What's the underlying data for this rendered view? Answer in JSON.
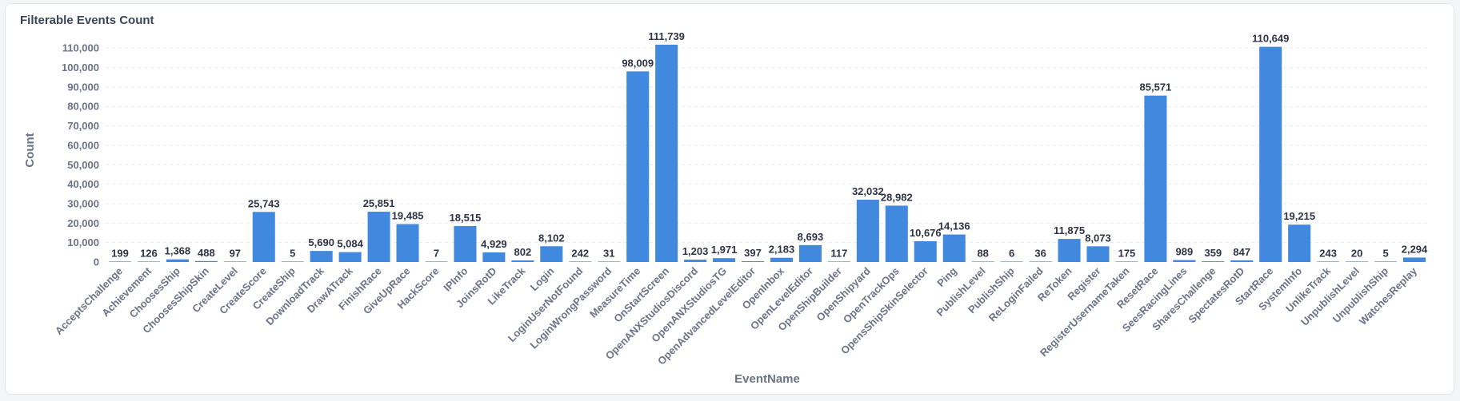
{
  "card": {
    "title": "Filterable Events Count"
  },
  "chart_data": {
    "type": "bar",
    "title": "Filterable Events Count",
    "xlabel": "EventName",
    "ylabel": "Count",
    "ylim": [
      0,
      115000
    ],
    "yticks": [
      0,
      10000,
      20000,
      30000,
      40000,
      50000,
      60000,
      70000,
      80000,
      90000,
      100000,
      110000
    ],
    "ytick_labels": [
      "0",
      "10,000",
      "20,000",
      "30,000",
      "40,000",
      "50,000",
      "60,000",
      "70,000",
      "80,000",
      "90,000",
      "100,000",
      "110,000"
    ],
    "grid": true,
    "bar_color": "#4089de",
    "categories": [
      "AcceptsChallenge",
      "Achievement",
      "ChoosesShip",
      "ChoosesShipSkin",
      "CreateLevel",
      "CreateScore",
      "CreateShip",
      "DownloadTrack",
      "DrawATrack",
      "FinishRace",
      "GiveUpRace",
      "HackScore",
      "IPInfo",
      "JoinsRotD",
      "LikeTrack",
      "Login",
      "LoginUserNotFound",
      "LoginWrongPassword",
      "MeasureTime",
      "OnStartScreen",
      "OpenANXStudiosDiscord",
      "OpenANXStudiosTG",
      "OpenAdvancedLevelEditor",
      "OpenInbox",
      "OpenLevelEditor",
      "OpenShipBuilder",
      "OpenShipyard",
      "OpenTrackOps",
      "OpensShipSkinSelector",
      "Ping",
      "PublishLevel",
      "PublishShip",
      "ReLoginFailed",
      "ReToken",
      "Register",
      "RegisterUsernameTaken",
      "ResetRace",
      "SeesRacingLines",
      "SharesChallenge",
      "SpectatesRotD",
      "StartRace",
      "SystemInfo",
      "UnlikeTrack",
      "UnpublishLevel",
      "UnpublishShip",
      "WatchesReplay"
    ],
    "values": [
      199,
      126,
      1368,
      488,
      97,
      25743,
      5,
      5690,
      5084,
      25851,
      19485,
      7,
      18515,
      4929,
      802,
      8102,
      242,
      31,
      98009,
      111739,
      1203,
      1971,
      397,
      2183,
      8693,
      117,
      32032,
      28982,
      10676,
      14136,
      88,
      6,
      36,
      11875,
      8073,
      175,
      85571,
      989,
      359,
      847,
      110649,
      19215,
      243,
      20,
      5,
      2294
    ],
    "labels": [
      "199",
      "126",
      "1,368",
      "488",
      "97",
      "25,743",
      "5",
      "5,690",
      "5,084",
      "25,851",
      "19,485",
      "7",
      "18,515",
      "4,929",
      "802",
      "8,102",
      "242",
      "31",
      "98,009",
      "111,739",
      "1,203",
      "1,971",
      "397",
      "2,183",
      "8,693",
      "117",
      "32,032",
      "28,982",
      "10,676",
      "14,136",
      "88",
      "6",
      "36",
      "11,875",
      "8,073",
      "175",
      "85,571",
      "989",
      "359",
      "847",
      "110,649",
      "19,215",
      "243",
      "20",
      "5",
      "2,294"
    ]
  }
}
